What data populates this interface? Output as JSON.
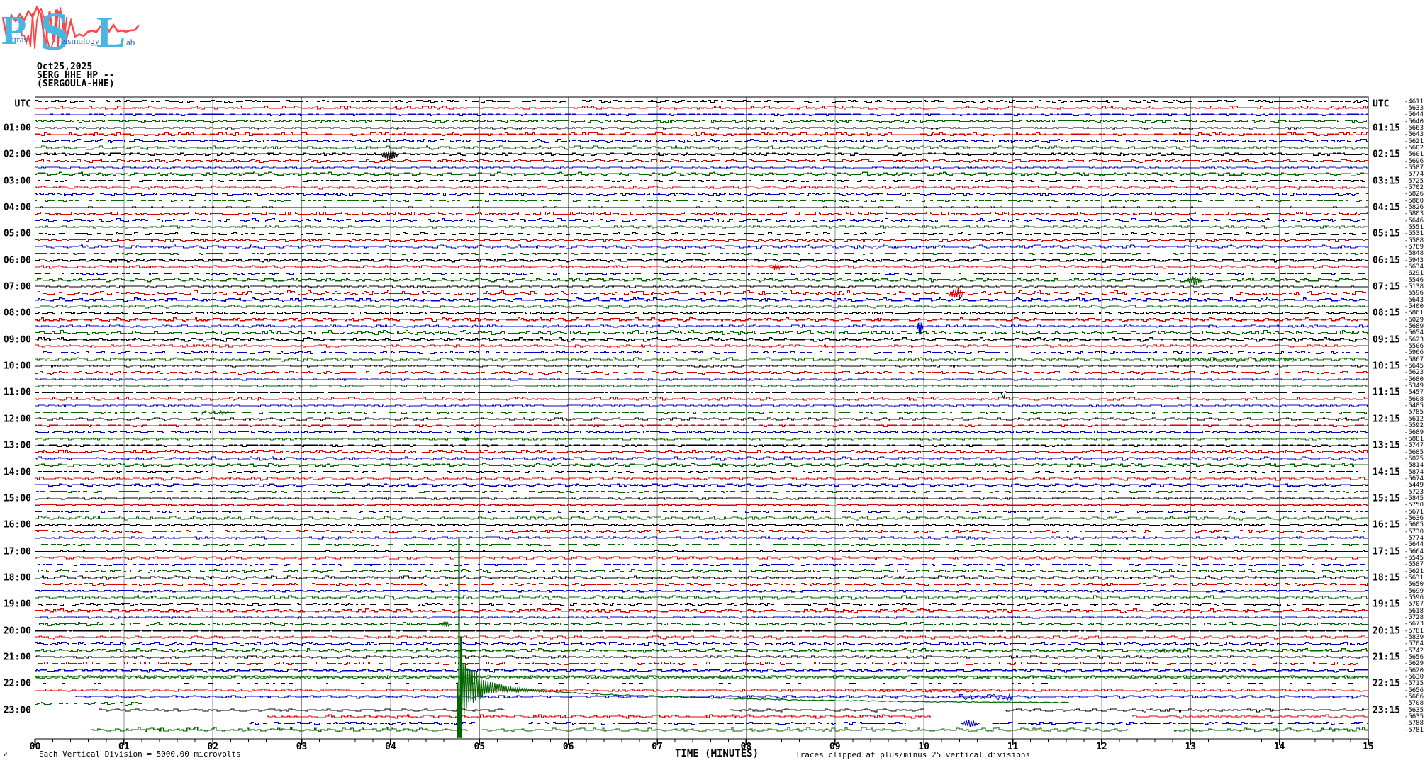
{
  "logo": {
    "letters": [
      "P",
      "S",
      "L"
    ],
    "words": [
      "atras",
      "eismology",
      "ab"
    ],
    "full_name": "Patras Seismology Lab",
    "letter_color": "#4ab4e4",
    "word_color": "#2b66cc",
    "squiggle_color": "#ff4545"
  },
  "header": {
    "date": "Oct25,2025",
    "station_line": "SERG HHE HP --",
    "station_name": "(SERGOULA-HHE)"
  },
  "axis": {
    "utc_left": "UTC",
    "utc_right": "UTC",
    "left_labels": [
      "01:00",
      "02:00",
      "03:00",
      "04:00",
      "05:00",
      "06:00",
      "07:00",
      "08:00",
      "09:00",
      "10:00",
      "11:00",
      "12:00",
      "13:00",
      "14:00",
      "15:00",
      "16:00",
      "17:00",
      "18:00",
      "19:00",
      "20:00",
      "21:00",
      "22:00",
      "23:00"
    ],
    "right_labels": [
      "01:15",
      "02:15",
      "03:15",
      "04:15",
      "05:15",
      "06:15",
      "07:15",
      "08:15",
      "09:15",
      "10:15",
      "11:15",
      "12:15",
      "13:15",
      "14:15",
      "15:15",
      "16:15",
      "17:15",
      "18:15",
      "19:15",
      "20:15",
      "21:15",
      "22:15",
      "23:15"
    ],
    "x_tick_labels": [
      "00",
      "01",
      "02",
      "03",
      "04",
      "05",
      "06",
      "07",
      "08",
      "09",
      "10",
      "11",
      "12",
      "13",
      "14",
      "15"
    ],
    "x_title": "TIME (MINUTES)"
  },
  "footer": {
    "corner_mark": "w",
    "scale_note": "Each Vertical Division = 5000.00 microvolts",
    "clip_note": "Traces clipped at plus/minus 25 vertical divisions"
  },
  "trace_values": [
    "-4611",
    "-5633",
    "-5644",
    "-5640",
    "-5663",
    "-5643",
    "-5621",
    "-5602",
    "-5601",
    "-5696",
    "-5587",
    "-5774",
    "-5725",
    "-5702",
    "-5826",
    "-5860",
    "-5826",
    "-5803",
    "-5646",
    "-5551",
    "-5531",
    "-5588",
    "-5789",
    "-5848",
    "-5943",
    "-6634",
    "-6291",
    "-5546",
    "-5138",
    "-5596",
    "-5643",
    "-5400",
    "-5861",
    "-6029",
    "-5689",
    "-5654",
    "-5623",
    "-5506",
    "-5966",
    "-5867",
    "-5645",
    "-5623",
    "-5680",
    "-5349",
    "-5457",
    "-5608",
    "-5485",
    "-5785",
    "-5612",
    "-5592",
    "-5689",
    "-5881",
    "-5747",
    "-5685",
    "-6025",
    "-5814",
    "-5874",
    "-5674",
    "-5449",
    "-5723",
    "-5845",
    "-5750",
    "-5671",
    "-5636",
    "-5605",
    "-5730",
    "-5774",
    "-5644",
    "-5664",
    "-5545",
    "-5587",
    "-5621",
    "-5631",
    "-5650",
    "-5699",
    "-5596",
    "-5707",
    "-5618",
    "-5728",
    "-5673",
    "-5781",
    "-5839",
    "-5704",
    "-5742",
    "-5656",
    "-5629",
    "-5620",
    "-5630",
    "-5715",
    "-5656",
    "-5666",
    "-5708",
    "-5635",
    "-5635",
    "-5788",
    "-5781"
  ],
  "chart_data": {
    "type": "line",
    "subtype": "helicorder-seismogram",
    "title": "SERG HHE HP -- (SERGOULA-HHE) Oct25,2025",
    "station": "SERG HHE HP --",
    "station_name": "SERGOULA-HHE",
    "date": "Oct25,2025",
    "x_axis": {
      "title": "TIME (MINUTES)",
      "range": [
        0,
        15
      ],
      "major_tick": 1,
      "minor_tick": 0.2
    },
    "rows": {
      "count": 96,
      "minutes_per_row": 15,
      "first_row_utc": "00:00",
      "row_colors_cycle": [
        "#000000",
        "#dd0000",
        "#0000cc",
        "#006600"
      ]
    },
    "scale": {
      "vertical_division_microvolts": 5000.0,
      "clip_divisions": 25
    },
    "grid": {
      "vertical_gridlines_every_minute": true,
      "gridline_color": "#8c8c8c"
    },
    "row_end_values_microvolts": [
      -4611,
      -5633,
      -5644,
      -5640,
      -5663,
      -5643,
      -5621,
      -5602,
      -5601,
      -5696,
      -5587,
      -5774,
      -5725,
      -5702,
      -5826,
      -5860,
      -5826,
      -5803,
      -5646,
      -5551,
      -5531,
      -5588,
      -5789,
      -5848,
      -5943,
      -6634,
      -6291,
      -5546,
      -5138,
      -5596,
      -5643,
      -5400,
      -5861,
      -6029,
      -5689,
      -5654,
      -5623,
      -5506,
      -5966,
      -5867,
      -5645,
      -5623,
      -5680,
      -5349,
      -5457,
      -5608,
      -5485,
      -5785,
      -5612,
      -5592,
      -5689,
      -5881,
      -5747,
      -5685,
      -6025,
      -5814,
      -5874,
      -5674,
      -5449,
      -5723,
      -5845,
      -5750,
      -5671,
      -5636,
      -5605,
      -5730,
      -5774,
      -5644,
      -5664,
      -5545,
      -5587,
      -5621,
      -5631,
      -5650,
      -5699,
      -5596,
      -5707,
      -5618,
      -5728,
      -5673,
      -5781,
      -5839,
      -5704,
      -5742,
      -5656,
      -5629,
      -5620,
      -5630,
      -5715,
      -5656,
      -5666,
      -5708,
      -5635,
      -5635,
      -5788,
      -5781
    ],
    "events": [
      {
        "row": 8,
        "utc_row": "02:00",
        "color": "black",
        "type": "burst",
        "minute": 3.9,
        "width_min": 0.18,
        "amp_div": 0.9
      },
      {
        "row": 25,
        "utc_row": "06:15",
        "color": "red",
        "type": "burst",
        "minute": 8.28,
        "width_min": 0.12,
        "amp_div": 0.45
      },
      {
        "row": 27,
        "utc_row": "06:45",
        "color": "green",
        "type": "burst",
        "minute": 12.95,
        "width_min": 0.18,
        "amp_div": 0.75
      },
      {
        "row": 29,
        "utc_row": "07:15",
        "color": "red",
        "type": "burst",
        "minute": 10.28,
        "width_min": 0.17,
        "amp_div": 1.0
      },
      {
        "row": 34,
        "utc_row": "08:30",
        "color": "blue",
        "type": "spike",
        "minute": 9.92,
        "width_min": 0.07,
        "amp_div": 1.3
      },
      {
        "row": 39,
        "utc_row": "09:45",
        "color": "green",
        "type": "fuzz",
        "minute": 12.8,
        "width_min": 1.4,
        "amp_div": 0.3
      },
      {
        "row": 44,
        "utc_row": "11:00",
        "color": "black",
        "type": "dip",
        "minute": 10.9,
        "width_min": 0.08,
        "amp_div": 0.85
      },
      {
        "row": 47,
        "utc_row": "11:45",
        "color": "green",
        "type": "fuzz",
        "minute": 1.88,
        "width_min": 0.3,
        "amp_div": 0.3
      },
      {
        "row": 51,
        "utc_row": "12:45",
        "color": "green",
        "type": "burst",
        "minute": 4.82,
        "width_min": 0.06,
        "amp_div": 0.4
      },
      {
        "row": 79,
        "utc_row": "19:45",
        "color": "green",
        "type": "burst",
        "minute": 4.58,
        "width_min": 0.08,
        "amp_div": 0.6
      },
      {
        "row": 83,
        "utc_row": "20:45",
        "color": "green",
        "type": "fuzz",
        "minute": 12.4,
        "width_min": 0.5,
        "amp_div": 0.3
      },
      {
        "row": 87,
        "utc_row": "21:45",
        "color": "green",
        "type": "fuzz",
        "minute": 0.0,
        "width_min": 15.0,
        "amp_div": 0.2
      },
      {
        "row": 89,
        "utc_row": "22:15",
        "color": "red",
        "type": "fuzz",
        "minute": 9.5,
        "width_min": 1.1,
        "amp_div": 0.25
      },
      {
        "row": 90,
        "utc_row": "22:30",
        "color": "blue",
        "type": "fuzz",
        "minute": 10.4,
        "width_min": 0.6,
        "amp_div": 0.4
      },
      {
        "row": 94,
        "utc_row": "23:30",
        "color": "blue",
        "type": "burst",
        "minute": 10.43,
        "width_min": 0.18,
        "amp_div": 0.55
      }
    ],
    "mainshock": {
      "row": 91,
      "utc_row": "22:45",
      "color": "green",
      "minute": 4.77,
      "clip_divisions": 25,
      "coda_end_minute": 5.75,
      "tail_end_minute": 11.63,
      "description": "large clipped earthquake onset with oscillating coda and slow decaying tail"
    },
    "row_segments": {
      "90": [
        [
          0.46,
          15
        ]
      ],
      "91": [
        [
          0,
          1.24
        ]
      ],
      "92": [
        [
          0.72,
          5.28
        ],
        [
          7.82,
          10.0
        ],
        [
          10.91,
          15
        ]
      ],
      "93": [
        [
          2.61,
          10.08
        ],
        [
          12.35,
          15
        ]
      ],
      "94": [
        [
          2.41,
          4.95
        ],
        [
          5.55,
          9.8
        ],
        [
          10.77,
          15
        ]
      ],
      "95": [
        [
          0.64,
          4.87
        ],
        [
          5.03,
          12.3
        ],
        [
          12.82,
          15
        ]
      ]
    }
  }
}
